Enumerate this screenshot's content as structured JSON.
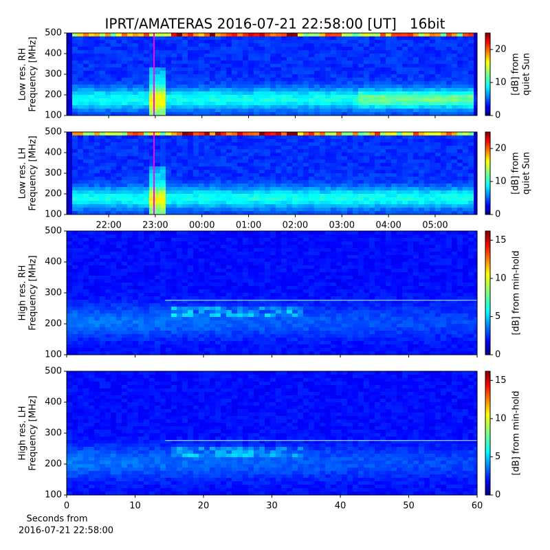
{
  "title": "IPRT/AMATERAS 2016-07-21 22:58:00 [UT]   16bit",
  "chart_data": [
    {
      "type": "heatmap",
      "colormap": "jet",
      "ylabel": [
        "Low res. RH",
        "Frequency [MHz]"
      ],
      "ylim": [
        100,
        500
      ],
      "yticks": [
        100,
        200,
        300,
        400,
        500
      ],
      "xlim": [
        21.1,
        29.9
      ],
      "colorbar": {
        "label": [
          "[dB] from",
          "quiet Sun"
        ],
        "lim": [
          0,
          25
        ],
        "ticks": [
          0,
          10,
          20
        ]
      }
    },
    {
      "type": "heatmap",
      "colormap": "jet",
      "ylabel": [
        "Low res. LH",
        "Frequency [MHz]"
      ],
      "ylim": [
        100,
        500
      ],
      "yticks": [
        100,
        200,
        300,
        400,
        500
      ],
      "xlim": [
        21.1,
        29.9
      ],
      "xticks": [
        {
          "value": 22,
          "label": "22:00"
        },
        {
          "value": 23,
          "label": "23:00"
        },
        {
          "value": 24,
          "label": "00:00"
        },
        {
          "value": 25,
          "label": "01:00"
        },
        {
          "value": 26,
          "label": "02:00"
        },
        {
          "value": 27,
          "label": "03:00"
        },
        {
          "value": 28,
          "label": "04:00"
        },
        {
          "value": 29,
          "label": "05:00"
        }
      ],
      "colorbar": {
        "label": [
          "[dB] from",
          "quiet Sun"
        ],
        "lim": [
          0,
          25
        ],
        "ticks": [
          0,
          10,
          20
        ]
      }
    },
    {
      "type": "heatmap",
      "colormap": "jet",
      "ylabel": [
        "High res. RH",
        "Frequency [MHz]"
      ],
      "ylim": [
        100,
        500
      ],
      "yticks": [
        100,
        200,
        300,
        400,
        500
      ],
      "xlim": [
        0,
        60
      ],
      "colorbar": {
        "label": [
          "[dB] from min-hold"
        ],
        "lim": [
          0,
          16.2
        ],
        "ticks": [
          0,
          5,
          10,
          15
        ]
      }
    },
    {
      "type": "heatmap",
      "colormap": "jet",
      "ylabel": [
        "High res. LH",
        "Frequency [MHz]"
      ],
      "ylim": [
        100,
        500
      ],
      "yticks": [
        100,
        200,
        300,
        400,
        500
      ],
      "xlim": [
        0,
        60
      ],
      "xticks": [
        0,
        10,
        20,
        30,
        40,
        50,
        60
      ],
      "xlabel": [
        "Seconds from",
        "2016-07-21 22:58:00"
      ],
      "colorbar": {
        "label": [
          "[dB] from min-hold"
        ],
        "lim": [
          0,
          16.2
        ],
        "ticks": [
          0,
          5,
          10,
          15
        ]
      }
    }
  ]
}
